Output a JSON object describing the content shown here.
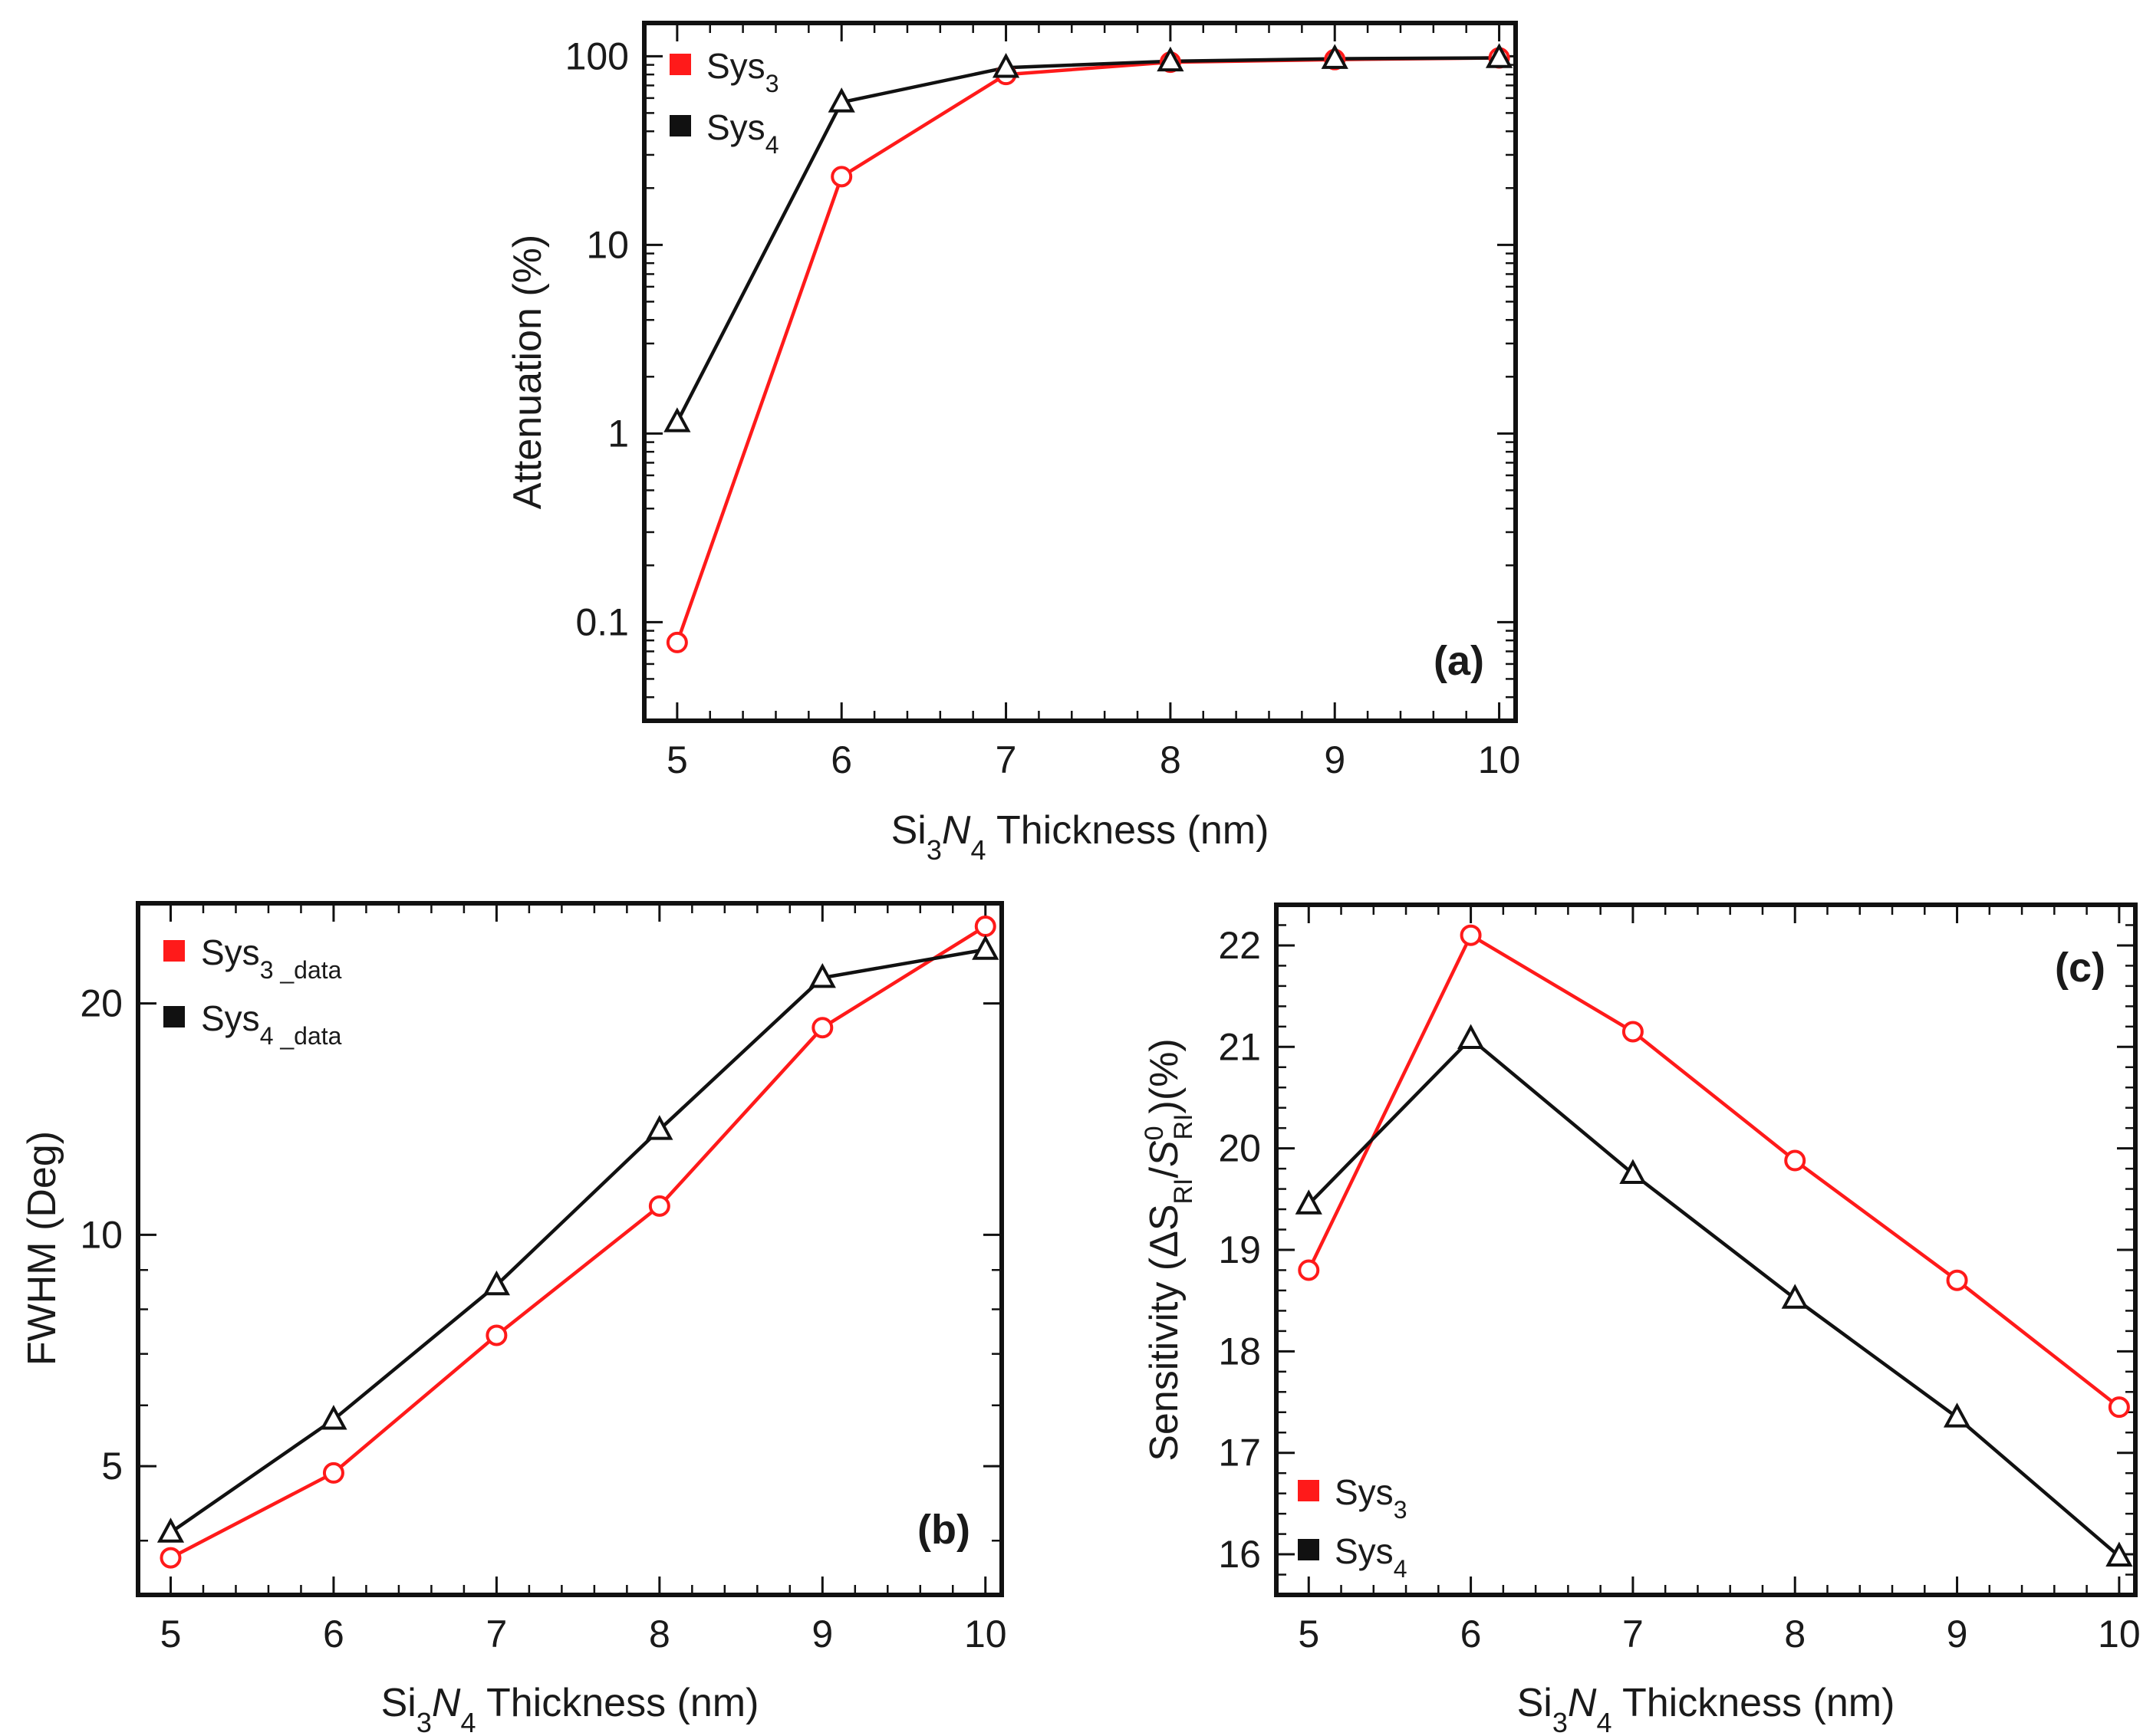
{
  "colors": {
    "sys3": "#ff1a1a",
    "sys4": "#111111",
    "axis": "#111111"
  },
  "chart_data": [
    {
      "id": "a",
      "type": "line",
      "panel_label": "(a)",
      "yscale": "log",
      "xlabel": {
        "pre": "Si",
        "sub1": "3",
        "mid": "N",
        "sub2": "4",
        "post": " Thickness (nm)"
      },
      "ylabel": "Attenuation (%)",
      "xlim": [
        4.8,
        10.1
      ],
      "ylim": [
        0.03,
        150
      ],
      "x": [
        5,
        6,
        7,
        8,
        9,
        10
      ],
      "xticks": [
        5,
        6,
        7,
        8,
        9,
        10
      ],
      "yticks": [
        0.1,
        1,
        10,
        100
      ],
      "ytick_labels": [
        "0.1",
        "1",
        "10",
        "100"
      ],
      "legend_position": "top-left",
      "series": [
        {
          "name": "Sys",
          "sub": "3",
          "color_key": "sys3",
          "marker": "circle",
          "values": [
            0.078,
            23,
            80,
            93,
            96,
            98
          ]
        },
        {
          "name": "Sys",
          "sub": "4",
          "color_key": "sys4",
          "marker": "triangle",
          "values": [
            1.15,
            57,
            87,
            94,
            97,
            98
          ]
        }
      ]
    },
    {
      "id": "b",
      "type": "line",
      "panel_label": "(b)",
      "yscale": "log",
      "xlabel": {
        "pre": "Si",
        "sub1": "3",
        "mid": "N",
        "sub2": "4",
        "post": " Thickness (nm)"
      },
      "ylabel": "FWHM (Deg)",
      "xlim": [
        4.8,
        10.1
      ],
      "ylim": [
        3.4,
        27
      ],
      "x": [
        5,
        6,
        7,
        8,
        9,
        10
      ],
      "xticks": [
        5,
        6,
        7,
        8,
        9,
        10
      ],
      "yticks": [
        5,
        10,
        20
      ],
      "ytick_labels": [
        "5",
        "10",
        "20"
      ],
      "legend_position": "top-left",
      "series": [
        {
          "name": "Sys",
          "sub": "3 _data",
          "color_key": "sys3",
          "marker": "circle",
          "values": [
            3.8,
            4.9,
            7.4,
            10.9,
            18.6,
            25.2
          ]
        },
        {
          "name": "Sys",
          "sub": "4 _data",
          "color_key": "sys4",
          "marker": "triangle",
          "values": [
            4.1,
            5.75,
            8.6,
            13.7,
            21.6,
            23.5
          ]
        }
      ]
    },
    {
      "id": "c",
      "type": "line",
      "panel_label": "(c)",
      "yscale": "linear",
      "xlabel": {
        "pre": "Si",
        "sub1": "3",
        "mid": "N",
        "sub2": "4",
        "post": " Thickness (nm)"
      },
      "ylabel": {
        "pre": "Sensitivity (ΔS",
        "sub1": "RI",
        "mid": "/",
        "ital": "S",
        "sup": "0",
        "sub2": "RI",
        "post": ")(%)"
      },
      "xlim": [
        4.8,
        10.1
      ],
      "ylim": [
        15.6,
        22.4
      ],
      "x": [
        5,
        6,
        7,
        8,
        9,
        10
      ],
      "xticks": [
        5,
        6,
        7,
        8,
        9,
        10
      ],
      "yticks": [
        16,
        17,
        18,
        19,
        20,
        21,
        22
      ],
      "ytick_labels": [
        "16",
        "17",
        "18",
        "19",
        "20",
        "21",
        "22"
      ],
      "legend_position": "bottom-left",
      "series": [
        {
          "name": "Sys",
          "sub": "3",
          "color_key": "sys3",
          "marker": "circle",
          "values": [
            18.8,
            22.1,
            21.15,
            19.88,
            18.7,
            17.45
          ]
        },
        {
          "name": "Sys",
          "sub": "4",
          "color_key": "sys4",
          "marker": "triangle",
          "values": [
            19.45,
            21.08,
            19.75,
            18.52,
            17.35,
            15.98
          ]
        }
      ]
    }
  ]
}
